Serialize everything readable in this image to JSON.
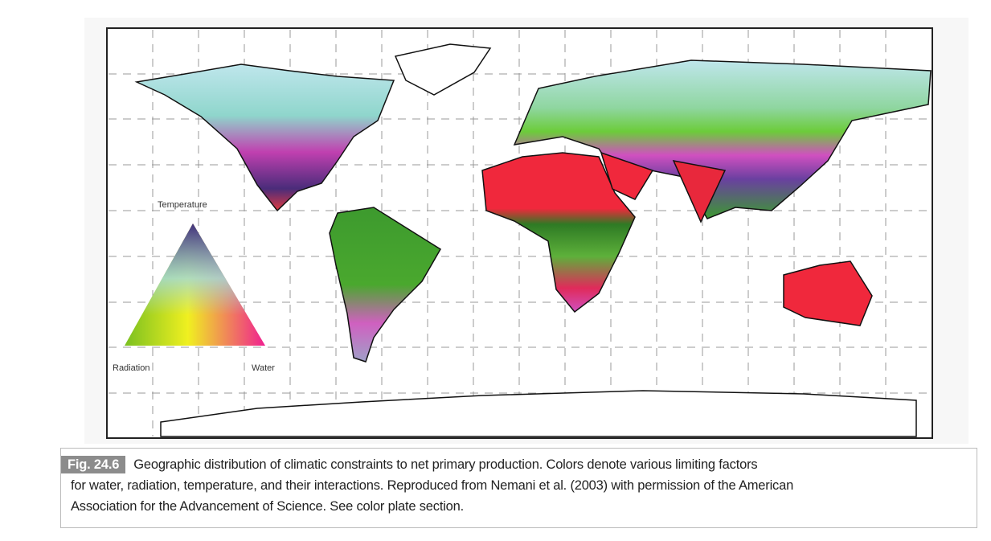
{
  "legend": {
    "top": "Temperature",
    "left": "Radiation",
    "right": "Water"
  },
  "figure": {
    "label": "Fig. 24.6",
    "caption_lines": [
      "Geographic distribution of climatic constraints to net primary production. Colors denote various limiting factors",
      "for water, radiation, temperature, and their interactions. Reproduced from Nemani et al. (2003) with permission of the American",
      "Association for the Advancement of Science. See color plate section."
    ]
  }
}
